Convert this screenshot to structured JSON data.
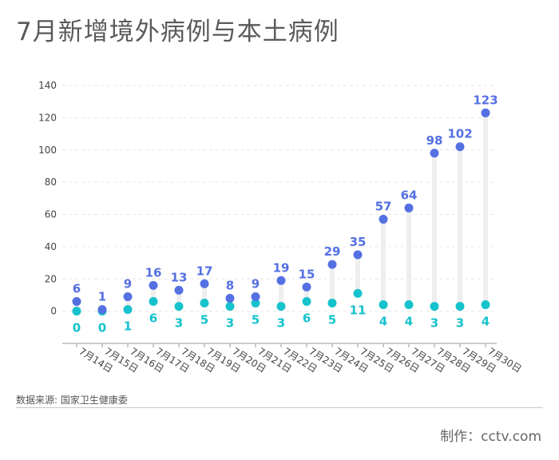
{
  "title": "7月新增境外病例与本土病例",
  "source": "数据来源: 国家卫生健康委",
  "credit": "制作：cctv.com",
  "colors": {
    "imported": "#5470e2",
    "local": "#16c2cc",
    "stem": "#eeeeee",
    "grid": "#e6e6e6",
    "axis": "#9a9a9a",
    "tick_text": "#444444"
  },
  "chart_data": {
    "type": "dot",
    "categories": [
      "7月14日",
      "7月15日",
      "7月16日",
      "7月17日",
      "7月18日",
      "7月19日",
      "7月20日",
      "7月21日",
      "7月22日",
      "7月23日",
      "7月24日",
      "7月25日",
      "7月26日",
      "7月27日",
      "7月28日",
      "7月29日",
      "7月30日"
    ],
    "series": [
      {
        "values": [
          6,
          1,
          9,
          16,
          13,
          17,
          8,
          9,
          19,
          15,
          29,
          35,
          57,
          64,
          98,
          102,
          123
        ]
      },
      {
        "values": [
          0,
          0,
          1,
          6,
          3,
          5,
          3,
          5,
          3,
          6,
          5,
          11,
          4,
          4,
          3,
          3,
          4
        ]
      }
    ],
    "ylim": [
      -20,
      140
    ],
    "yticks": [
      0,
      20,
      40,
      60,
      80,
      100,
      120,
      140
    ],
    "grid": true
  }
}
